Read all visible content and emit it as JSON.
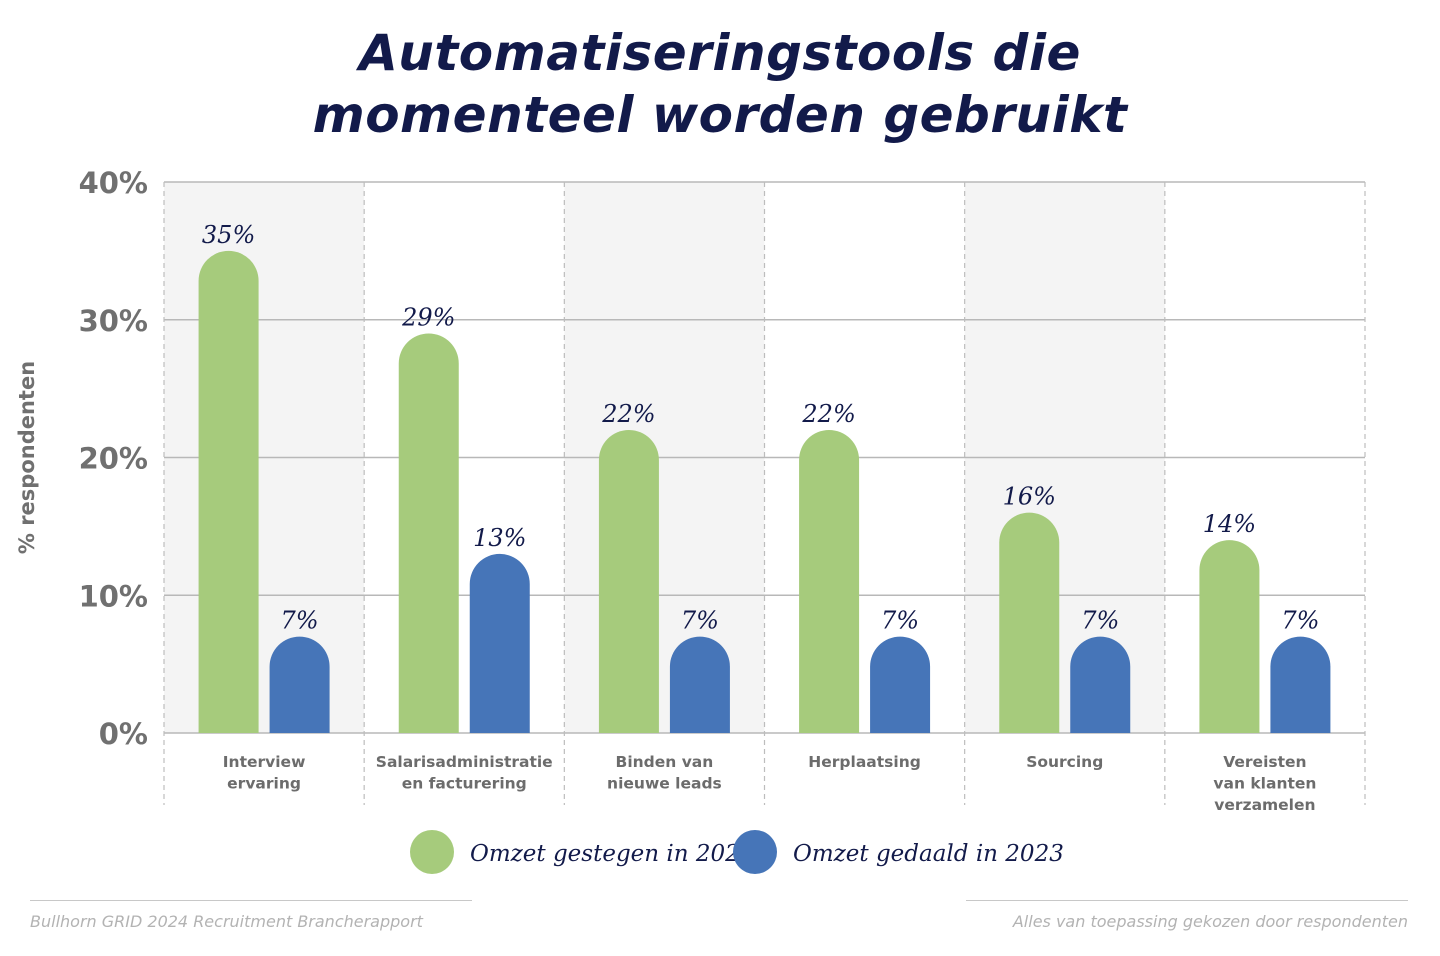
{
  "title_lines": [
    "Automatiseringstools die",
    "momenteel worden gebruikt"
  ],
  "colors": {
    "green": "#a6cb7c",
    "blue": "#4675b8",
    "title": "#121a4a",
    "grid": "#b8b8b8",
    "band": "#f4f4f4"
  },
  "footer": {
    "left": "Bullhorn GRID 2024 Recruitment Brancherapport",
    "right": "Alles van toepassing gekozen door respondenten"
  },
  "chart_data": {
    "type": "bar",
    "ylabel": "% respondenten",
    "ylim": [
      0,
      40
    ],
    "yticks": [
      "0%",
      "10%",
      "20%",
      "30%",
      "40%"
    ],
    "yticks_values": [
      0,
      10,
      20,
      30,
      40
    ],
    "grid": true,
    "legend_position": "bottom",
    "categories": [
      [
        "Interview",
        "ervaring"
      ],
      [
        "Salarisadministratie",
        "en facturering"
      ],
      [
        "Binden van",
        "nieuwe leads"
      ],
      [
        "Herplaatsing"
      ],
      [
        "Sourcing"
      ],
      [
        "Vereisten",
        "van klanten",
        "verzamelen"
      ]
    ],
    "series": [
      {
        "name": "Omzet gestegen in 2023",
        "color": "#a6cb7c",
        "values": [
          35,
          29,
          22,
          22,
          16,
          14
        ],
        "labels": [
          "35%",
          "29%",
          "22%",
          "22%",
          "16%",
          "14%"
        ]
      },
      {
        "name": "Omzet gedaald in 2023",
        "color": "#4675b8",
        "values": [
          7,
          13,
          7,
          7,
          7,
          7
        ],
        "labels": [
          "7%",
          "13%",
          "7%",
          "7%",
          "7%",
          "7%"
        ]
      }
    ]
  }
}
